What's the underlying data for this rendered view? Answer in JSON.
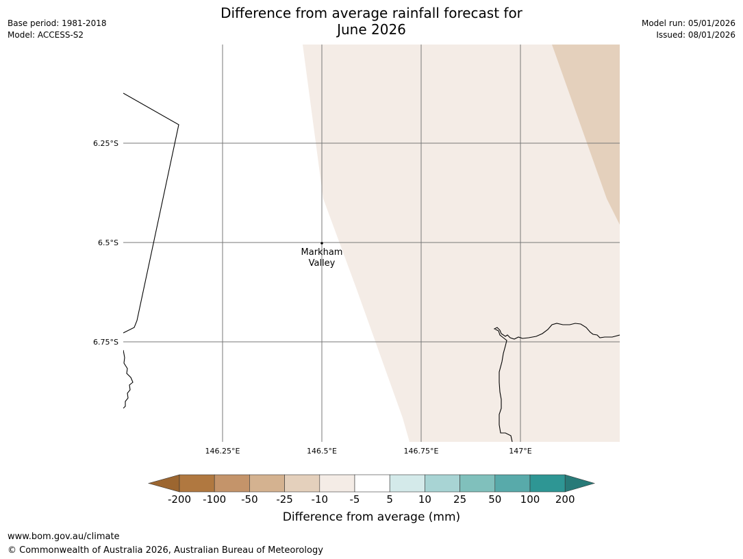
{
  "title": {
    "line1": "Difference from average rainfall forecast for",
    "line2": "June 2026"
  },
  "meta_left": {
    "base_period": "Base period: 1981-2018",
    "model": "Model: ACCESS-S2"
  },
  "meta_right": {
    "model_run": "Model run: 05/01/2026",
    "issued": "Issued: 08/01/2026"
  },
  "map": {
    "lon_ticks": [
      "146.25°E",
      "146.5°E",
      "146.75°E",
      "147°E"
    ],
    "lat_ticks": [
      "6.25°S",
      "6.5°S",
      "6.75°S"
    ],
    "place": {
      "name_line1": "Markham",
      "name_line2": "Valley"
    }
  },
  "colorbar": {
    "labels": [
      "-200",
      "-100",
      "-50",
      "-25",
      "-10",
      "-5",
      "5",
      "10",
      "25",
      "50",
      "100",
      "200"
    ],
    "colors": [
      "#9c6630",
      "#b07840",
      "#c4946a",
      "#d4b290",
      "#e4d0bc",
      "#f4ece6",
      "#ffffff",
      "#d4eaea",
      "#a8d4d4",
      "#80c0bc",
      "#58aaaa",
      "#2e9694",
      "#287a78"
    ],
    "title": "Difference from average (mm)"
  },
  "footer": {
    "url": "www.bom.gov.au/climate",
    "copyright": "© Commonwealth of Australia 2026, Australian Bureau of Meteorology"
  }
}
